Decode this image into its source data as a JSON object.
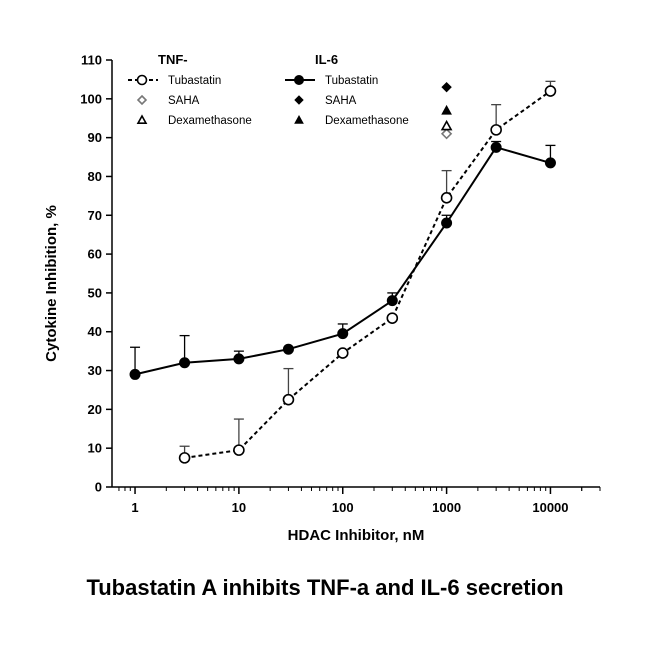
{
  "caption": "Tubastatin A inhibits TNF-a and IL-6 secretion",
  "chart_data": {
    "type": "line",
    "xscale": "log",
    "xlabel": "HDAC Inhibitor, nM",
    "ylabel": "Cytokine Inhibition, %",
    "xlim": [
      0.6,
      30000
    ],
    "ylim": [
      0,
      110
    ],
    "xticks": [
      1,
      10,
      100,
      1000,
      10000
    ],
    "xtick_labels": [
      "1",
      "10",
      "100",
      "1000",
      "10000"
    ],
    "yticks": [
      0,
      10,
      20,
      30,
      40,
      50,
      60,
      70,
      80,
      90,
      100,
      110
    ],
    "grid": false,
    "legend": {
      "placement": "top",
      "groups": [
        {
          "title": "TNF-",
          "entries": [
            "Tubastatin",
            "SAHA",
            "Dexamethasone"
          ]
        },
        {
          "title": "IL-6",
          "entries": [
            "Tubastatin",
            "SAHA",
            "Dexamethasone"
          ]
        }
      ]
    },
    "series": [
      {
        "name": "Tubastatin",
        "group": "TNF-",
        "style": "dashed",
        "marker": "open-circle",
        "x": [
          3,
          10,
          30,
          100,
          300,
          1000,
          3000,
          10000
        ],
        "y": [
          7.5,
          9.5,
          22.5,
          34.5,
          43.5,
          74.5,
          92,
          102
        ],
        "error_up": [
          3,
          8,
          8,
          0,
          0,
          7,
          6.5,
          2.5
        ]
      },
      {
        "name": "Tubastatin",
        "group": "IL-6",
        "style": "solid",
        "marker": "filled-circle",
        "x": [
          1,
          3,
          10,
          30,
          100,
          300,
          1000,
          3000,
          10000
        ],
        "y": [
          29,
          32,
          33,
          35.5,
          39.5,
          48,
          68,
          87.5,
          83.5
        ],
        "error_up": [
          7,
          7,
          2,
          0,
          2.5,
          2,
          2,
          1.5,
          4.5
        ]
      },
      {
        "name": "SAHA",
        "group": "TNF-",
        "marker": "open-diamond",
        "x": [
          1000
        ],
        "y": [
          91
        ]
      },
      {
        "name": "Dexamethasone",
        "group": "TNF-",
        "marker": "open-triangle",
        "x": [
          1000
        ],
        "y": [
          93
        ]
      },
      {
        "name": "SAHA",
        "group": "IL-6",
        "marker": "filled-diamond",
        "x": [
          1000
        ],
        "y": [
          103
        ]
      },
      {
        "name": "Dexamethasone",
        "group": "IL-6",
        "marker": "filled-triangle",
        "x": [
          1000
        ],
        "y": [
          97
        ]
      }
    ]
  }
}
